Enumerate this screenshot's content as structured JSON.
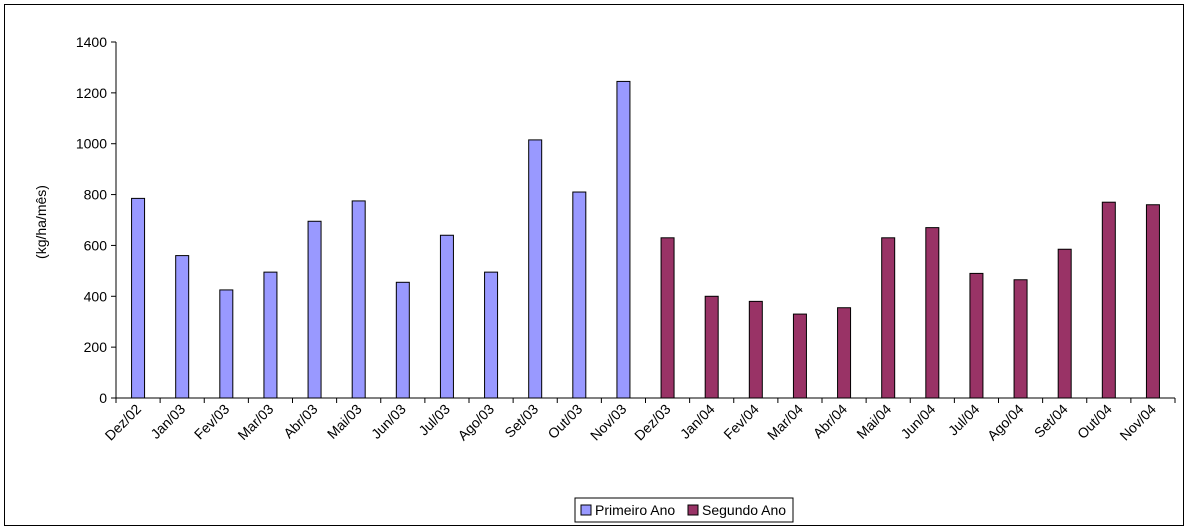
{
  "chart_data": {
    "type": "bar",
    "title": "",
    "xlabel": "",
    "ylabel": "(kg/ha/mês)",
    "ylim": [
      0,
      1400
    ],
    "yticks": [
      0,
      200,
      400,
      600,
      800,
      1000,
      1200,
      1400
    ],
    "grid": false,
    "legend_position": "bottom",
    "categories": [
      "Dez/02",
      "Jan/03",
      "Fev/03",
      "Mar/03",
      "Abr/03",
      "Mai/03",
      "Jun/03",
      "Jul/03",
      "Ago/03",
      "Set/03",
      "Out/03",
      "Nov/03",
      "Dez/03",
      "Jan/04",
      "Fev/04",
      "Mar/04",
      "Abr/04",
      "Mai/04",
      "Jun/04",
      "Jul/04",
      "Ago/04",
      "Set/04",
      "Out/04",
      "Nov/04"
    ],
    "series": [
      {
        "name": "Primeiro Ano",
        "color": "#9999FF",
        "values": [
          785,
          560,
          425,
          495,
          695,
          775,
          455,
          640,
          495,
          1015,
          810,
          1245,
          null,
          null,
          null,
          null,
          null,
          null,
          null,
          null,
          null,
          null,
          null,
          null
        ]
      },
      {
        "name": "Segundo Ano",
        "color": "#993366",
        "values": [
          null,
          null,
          null,
          null,
          null,
          null,
          null,
          null,
          null,
          null,
          null,
          null,
          630,
          400,
          380,
          330,
          355,
          630,
          670,
          490,
          465,
          585,
          770,
          760
        ]
      }
    ]
  }
}
